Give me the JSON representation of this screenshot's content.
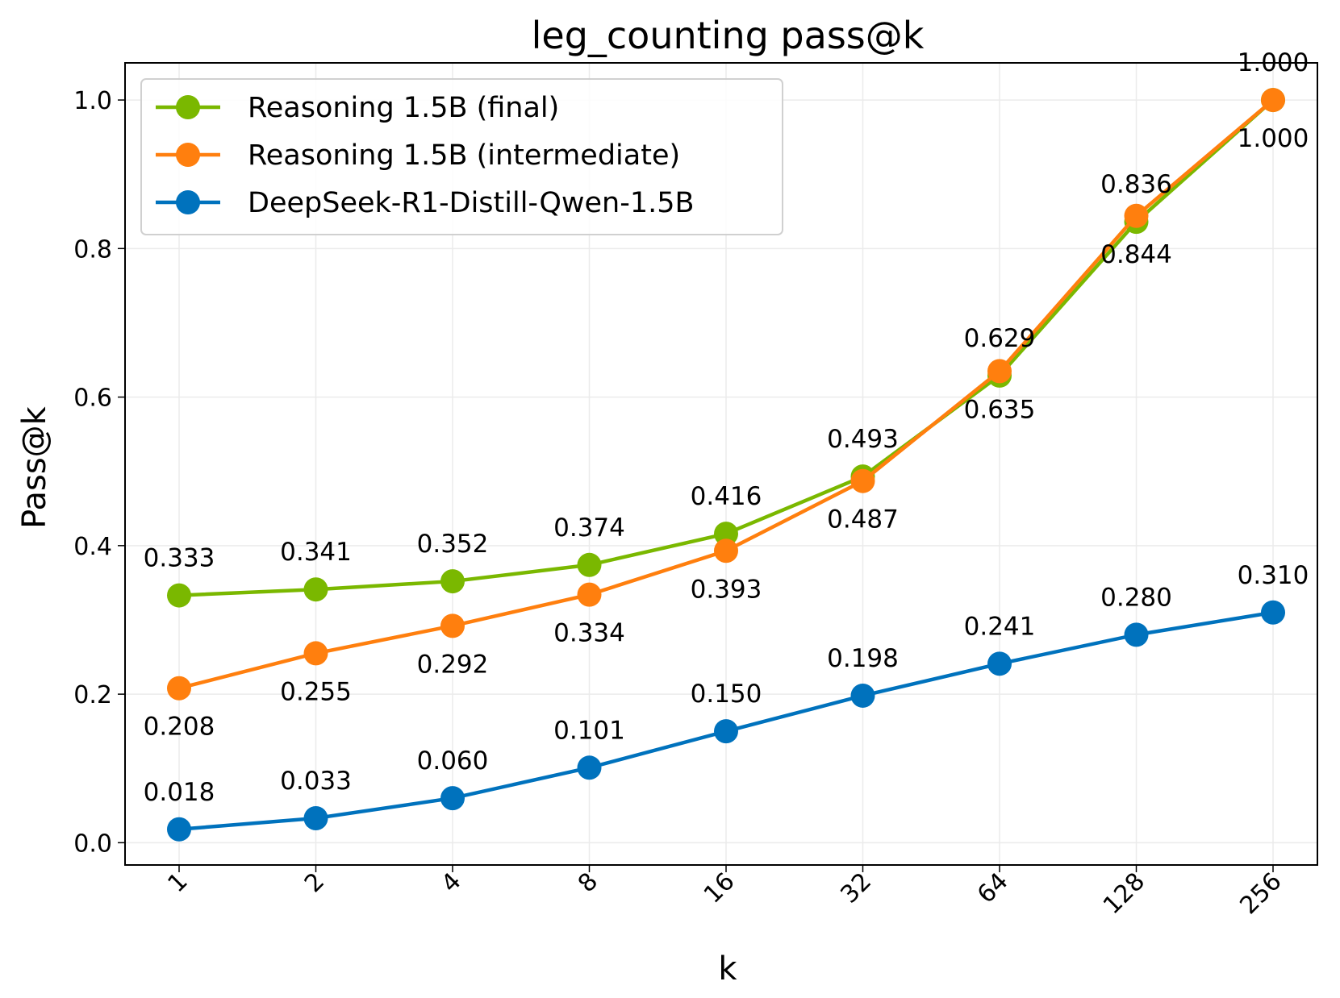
{
  "chart_data": {
    "type": "line",
    "title": "leg_counting pass@k",
    "xlabel": "k",
    "ylabel": "Pass@k",
    "categories": [
      "1",
      "2",
      "4",
      "8",
      "16",
      "32",
      "64",
      "128",
      "256"
    ],
    "ylim": [
      -0.03,
      1.05
    ],
    "yticks": [
      0.0,
      0.2,
      0.4,
      0.6,
      0.8,
      1.0
    ],
    "ytick_labels": [
      "0.0",
      "0.2",
      "0.4",
      "0.6",
      "0.8",
      "1.0"
    ],
    "grid": true,
    "legend_position": "top-left",
    "series": [
      {
        "name": "Reasoning 1.5B (final)",
        "color": "#7ab800",
        "values": [
          0.333,
          0.341,
          0.352,
          0.374,
          0.416,
          0.493,
          0.629,
          0.836,
          1.0
        ],
        "labels": [
          "0.333",
          "0.341",
          "0.352",
          "0.374",
          "0.416",
          "0.493",
          "0.629",
          "0.836",
          "1.000"
        ],
        "label_position": "above"
      },
      {
        "name": "Reasoning 1.5B (intermediate)",
        "color": "#ff7f0e",
        "values": [
          0.208,
          0.255,
          0.292,
          0.334,
          0.393,
          0.487,
          0.635,
          0.844,
          1.0
        ],
        "labels": [
          "0.208",
          "0.255",
          "0.292",
          "0.334",
          "0.393",
          "0.487",
          "0.635",
          "0.844",
          "1.000"
        ],
        "label_position": "below"
      },
      {
        "name": "DeepSeek-R1-Distill-Qwen-1.5B",
        "color": "#0072bd",
        "values": [
          0.018,
          0.033,
          0.06,
          0.101,
          0.15,
          0.198,
          0.241,
          0.28,
          0.31
        ],
        "labels": [
          "0.018",
          "0.033",
          "0.060",
          "0.101",
          "0.150",
          "0.198",
          "0.241",
          "0.280",
          "0.310"
        ],
        "label_position": "above"
      }
    ]
  }
}
